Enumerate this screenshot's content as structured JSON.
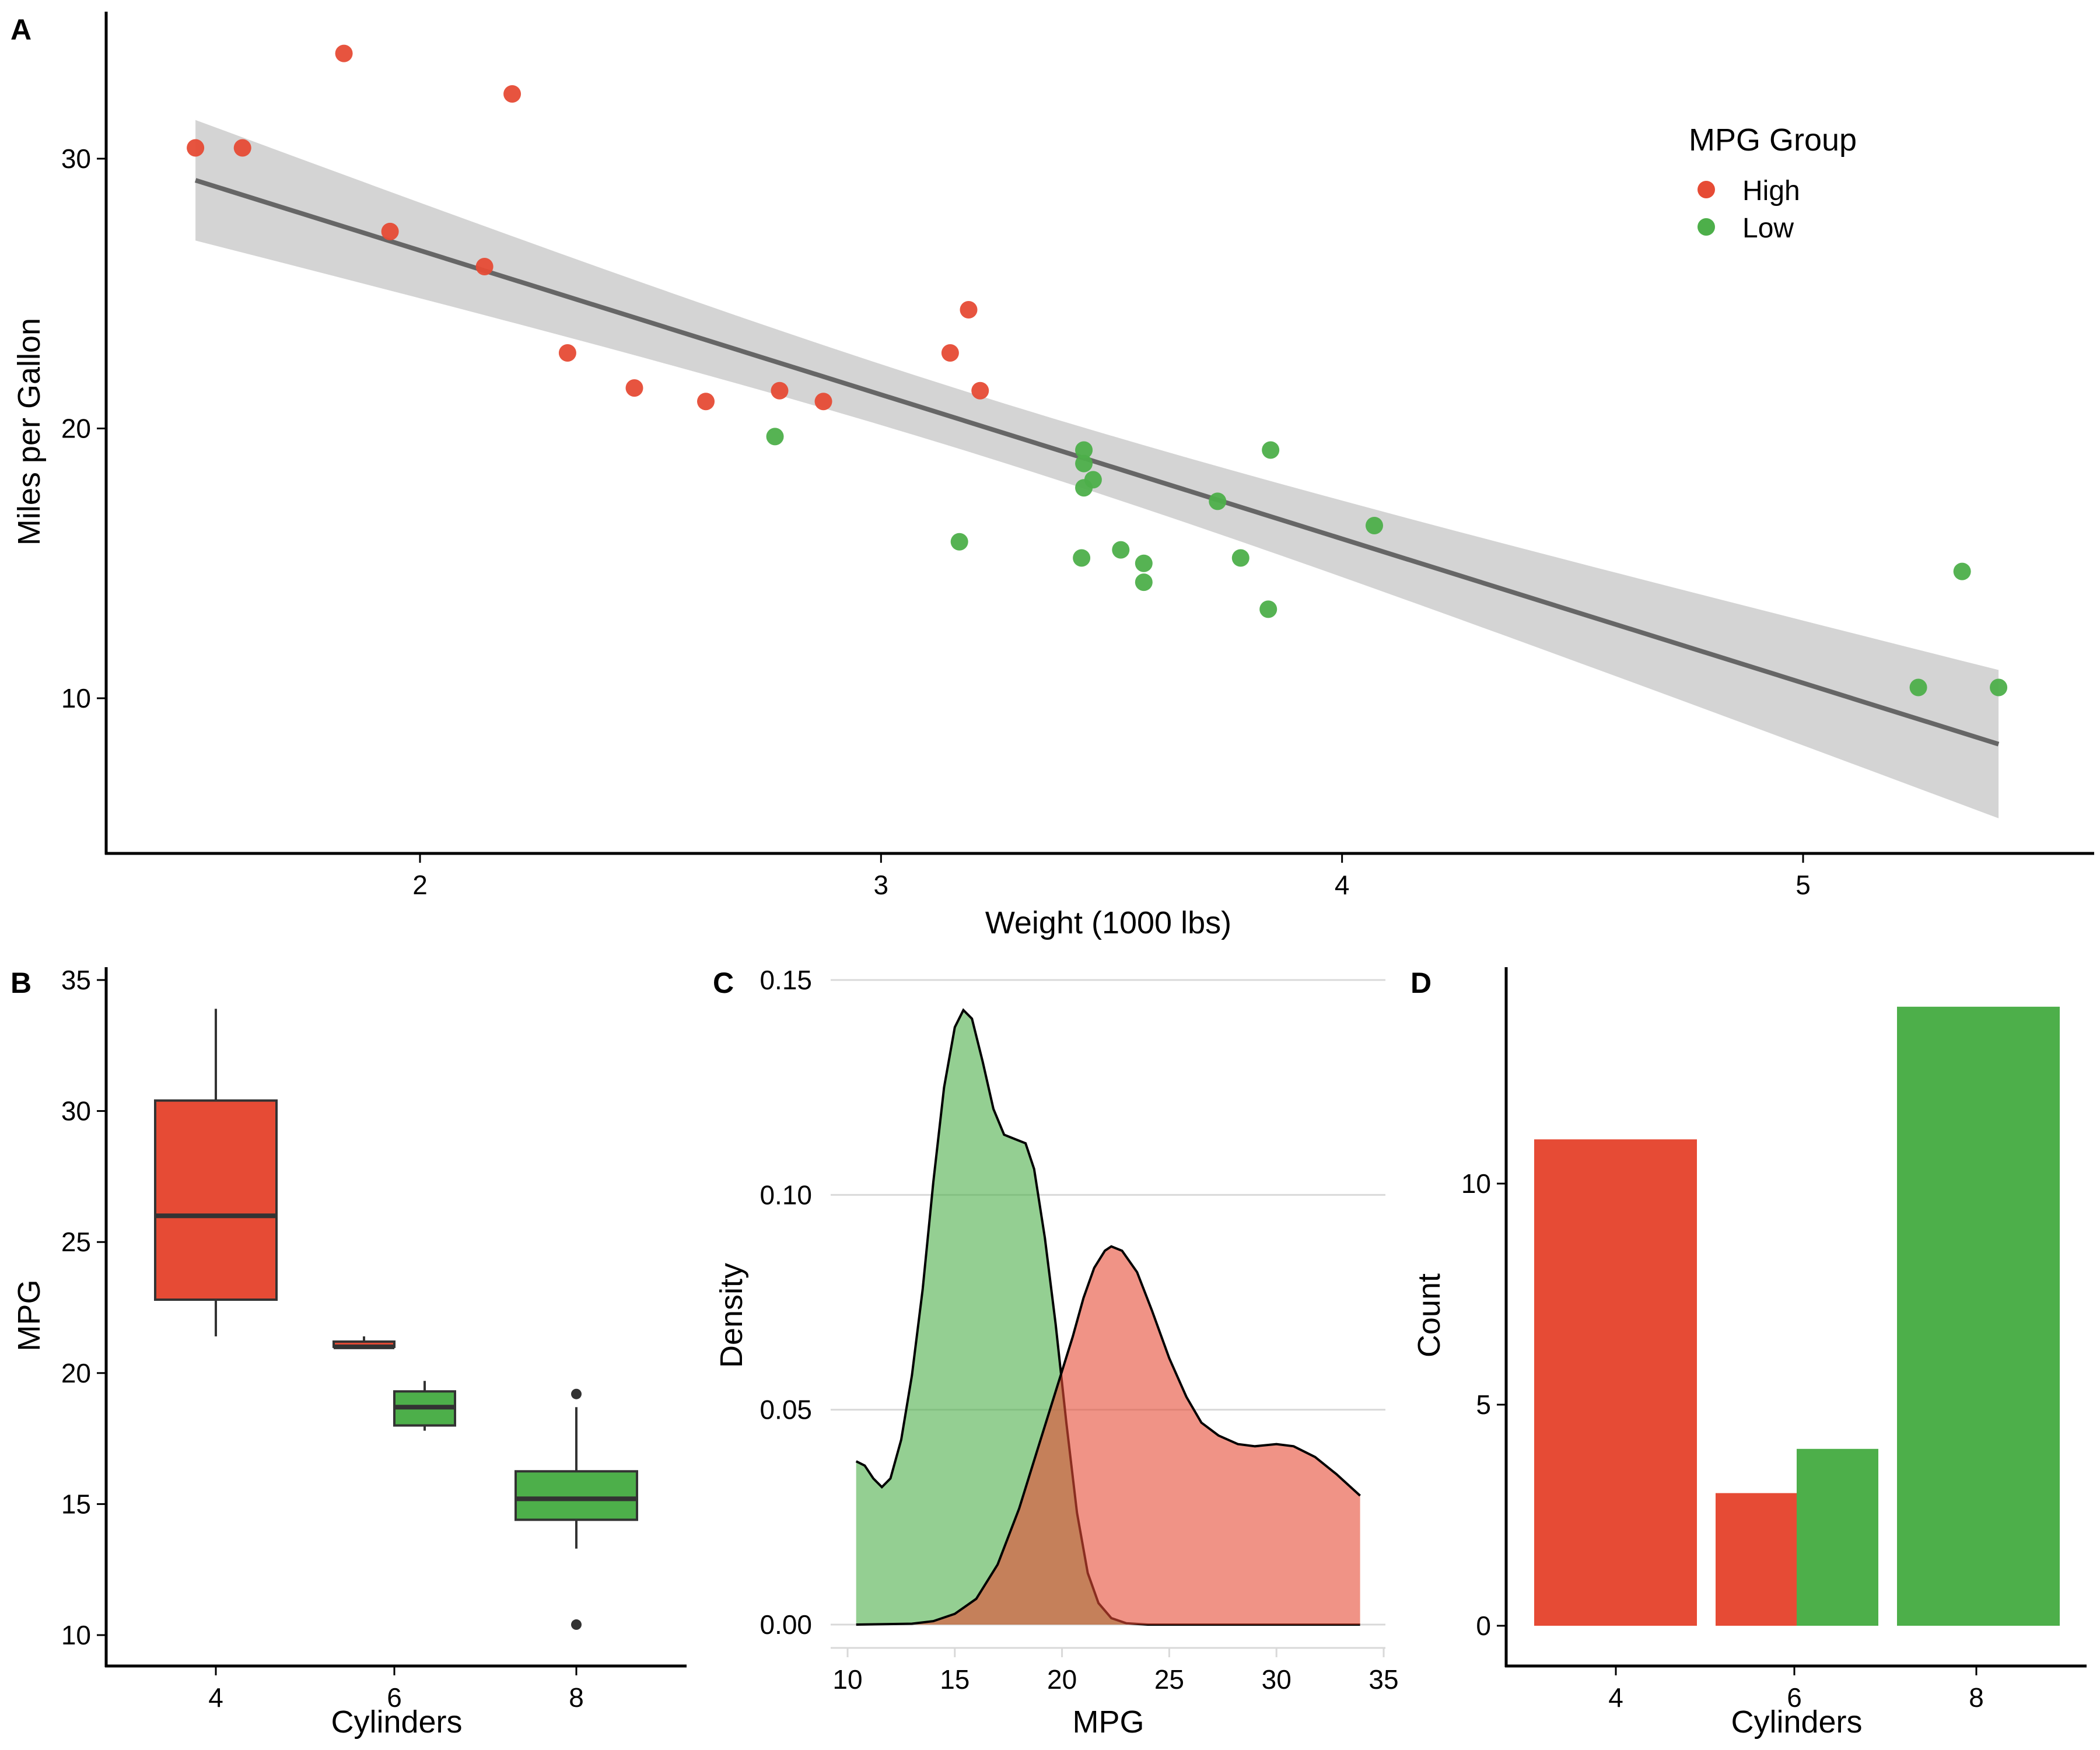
{
  "colors": {
    "high": "#E64B35",
    "low": "#4DAF4A",
    "ribbon": "#D4D4D4",
    "fit_line": "#666666",
    "box_line": "#333333",
    "high_density": "#EF9183",
    "low_density": "#93CF8E"
  },
  "chart_data": [
    {
      "panel": "A",
      "type": "scatter",
      "title": "",
      "xlabel": "Weight (1000 lbs)",
      "ylabel": "Miles per Gallon",
      "xlim": [
        1.35,
        5.63
      ],
      "ylim": [
        5.0,
        35.0
      ],
      "xticks": [
        2,
        3,
        4,
        5
      ],
      "yticks": [
        10,
        20,
        30
      ],
      "grid": false,
      "legend": {
        "title": "MPG Group",
        "position": "top-right",
        "entries": [
          "High",
          "Low"
        ]
      },
      "fit": {
        "method": "lm",
        "x_range": [
          1.513,
          5.424
        ],
        "intercept": 37.285,
        "slope": -5.344,
        "se_band": [
          [
            1.513,
            27.0,
            31.5
          ],
          [
            5.424,
            5.7,
            11.1
          ]
        ]
      },
      "series": [
        {
          "name": "High",
          "points": [
            [
              2.62,
              21.0
            ],
            [
              2.875,
              21.0
            ],
            [
              2.32,
              22.8
            ],
            [
              3.215,
              21.4
            ],
            [
              3.19,
              24.4
            ],
            [
              3.15,
              22.8
            ],
            [
              2.2,
              32.4
            ],
            [
              1.615,
              30.4
            ],
            [
              1.835,
              33.9
            ],
            [
              2.465,
              21.5
            ],
            [
              1.935,
              27.3
            ],
            [
              2.14,
              26.0
            ],
            [
              1.513,
              30.4
            ],
            [
              2.78,
              21.4
            ]
          ]
        },
        {
          "name": "Low",
          "points": [
            [
              3.44,
              18.7
            ],
            [
              3.46,
              18.1
            ],
            [
              3.57,
              14.3
            ],
            [
              3.44,
              19.2
            ],
            [
              3.44,
              17.8
            ],
            [
              4.07,
              16.4
            ],
            [
              3.73,
              17.3
            ],
            [
              3.78,
              15.2
            ],
            [
              5.25,
              10.4
            ],
            [
              5.424,
              10.4
            ],
            [
              5.345,
              14.7
            ],
            [
              3.52,
              15.5
            ],
            [
              3.435,
              15.2
            ],
            [
              3.84,
              13.3
            ],
            [
              3.845,
              19.2
            ],
            [
              3.17,
              15.8
            ],
            [
              2.77,
              19.7
            ],
            [
              3.57,
              15.0
            ]
          ]
        }
      ]
    },
    {
      "panel": "B",
      "type": "box",
      "xlabel": "Cylinders",
      "ylabel": "MPG",
      "ylim": [
        8.0,
        35.0
      ],
      "yticks": [
        10,
        15,
        20,
        25,
        30,
        35
      ],
      "categories": [
        "4",
        "6",
        "8"
      ],
      "boxes": [
        {
          "cyl": "4",
          "group": "High",
          "min": 21.4,
          "q1": 22.8,
          "median": 26.0,
          "q3": 30.4,
          "max": 33.9,
          "outliers": []
        },
        {
          "cyl": "6",
          "group": "High",
          "min": 21.0,
          "q1": 21.0,
          "median": 21.0,
          "q3": 21.2,
          "max": 21.4,
          "outliers": []
        },
        {
          "cyl": "6",
          "group": "Low",
          "min": 17.8,
          "q1": 18.0,
          "median": 18.7,
          "q3": 19.3,
          "max": 19.7,
          "outliers": []
        },
        {
          "cyl": "8",
          "group": "Low",
          "min": 13.3,
          "q1": 14.4,
          "median": 15.2,
          "q3": 16.25,
          "max": 18.7,
          "outliers": [
            19.2,
            10.4
          ]
        }
      ]
    },
    {
      "panel": "C",
      "type": "area",
      "xlabel": "MPG",
      "ylabel": "Density",
      "xlim": [
        9.0,
        35.0
      ],
      "ylim": [
        -0.005,
        0.15
      ],
      "xticks": [
        10,
        15,
        20,
        25,
        30,
        35
      ],
      "yticks": [
        "0.00",
        "0.05",
        "0.10",
        "0.15"
      ],
      "grid": true,
      "series": [
        {
          "name": "Low",
          "points": [
            [
              10.4,
              0.038
            ],
            [
              10.8,
              0.037
            ],
            [
              11.2,
              0.034
            ],
            [
              11.6,
              0.032
            ],
            [
              12.0,
              0.034
            ],
            [
              12.5,
              0.043
            ],
            [
              13.0,
              0.058
            ],
            [
              13.5,
              0.078
            ],
            [
              14.0,
              0.103
            ],
            [
              14.5,
              0.125
            ],
            [
              15.0,
              0.139
            ],
            [
              15.4,
              0.143
            ],
            [
              15.8,
              0.141
            ],
            [
              16.3,
              0.131
            ],
            [
              16.8,
              0.12
            ],
            [
              17.3,
              0.114
            ],
            [
              17.8,
              0.113
            ],
            [
              18.3,
              0.112
            ],
            [
              18.7,
              0.106
            ],
            [
              19.2,
              0.09
            ],
            [
              19.7,
              0.07
            ],
            [
              20.2,
              0.047
            ],
            [
              20.7,
              0.026
            ],
            [
              21.2,
              0.012
            ],
            [
              21.7,
              0.005
            ],
            [
              22.3,
              0.0015
            ],
            [
              23.0,
              0.0003
            ],
            [
              24.0,
              0.0
            ],
            [
              33.9,
              0.0
            ]
          ]
        },
        {
          "name": "High",
          "points": [
            [
              10.4,
              0.0
            ],
            [
              13.0,
              0.0002
            ],
            [
              14.0,
              0.0008
            ],
            [
              15.0,
              0.0025
            ],
            [
              16.0,
              0.006
            ],
            [
              17.0,
              0.014
            ],
            [
              18.0,
              0.027
            ],
            [
              19.0,
              0.043
            ],
            [
              20.0,
              0.059
            ],
            [
              20.5,
              0.067
            ],
            [
              21.0,
              0.076
            ],
            [
              21.5,
              0.083
            ],
            [
              22.0,
              0.087
            ],
            [
              22.3,
              0.088
            ],
            [
              22.8,
              0.087
            ],
            [
              23.5,
              0.082
            ],
            [
              24.2,
              0.073
            ],
            [
              25.0,
              0.062
            ],
            [
              25.8,
              0.053
            ],
            [
              26.5,
              0.047
            ],
            [
              27.3,
              0.044
            ],
            [
              28.2,
              0.042
            ],
            [
              29.0,
              0.0415
            ],
            [
              30.0,
              0.042
            ],
            [
              30.8,
              0.0415
            ],
            [
              31.8,
              0.039
            ],
            [
              32.8,
              0.035
            ],
            [
              33.9,
              0.03
            ]
          ]
        }
      ]
    },
    {
      "panel": "D",
      "type": "bar",
      "xlabel": "Cylinders",
      "ylabel": "Count",
      "ylim": [
        -0.5,
        14.5
      ],
      "yticks": [
        0,
        5,
        10
      ],
      "categories": [
        "4",
        "6",
        "8"
      ],
      "bars": [
        {
          "cyl": "4",
          "group": "High",
          "value": 11
        },
        {
          "cyl": "6",
          "group": "High",
          "value": 3
        },
        {
          "cyl": "6",
          "group": "Low",
          "value": 4
        },
        {
          "cyl": "8",
          "group": "Low",
          "value": 14
        }
      ]
    }
  ],
  "panels": {
    "a": {
      "tag": "A",
      "xlabel": "Weight (1000 lbs)",
      "ylabel": "Miles per Gallon",
      "xticks": [
        "2",
        "3",
        "4",
        "5"
      ],
      "yticks": [
        "10",
        "20",
        "30"
      ]
    },
    "b": {
      "tag": "B",
      "xlabel": "Cylinders",
      "ylabel": "MPG",
      "xticks": [
        "4",
        "6",
        "8"
      ],
      "yticks": [
        "10",
        "15",
        "20",
        "25",
        "30",
        "35"
      ]
    },
    "c": {
      "tag": "C",
      "xlabel": "MPG",
      "ylabel": "Density",
      "xticks": [
        "10",
        "15",
        "20",
        "25",
        "30",
        "35"
      ],
      "yticks": [
        "0.00",
        "0.05",
        "0.10",
        "0.15"
      ]
    },
    "d": {
      "tag": "D",
      "xlabel": "Cylinders",
      "ylabel": "Count",
      "xticks": [
        "4",
        "6",
        "8"
      ],
      "yticks": [
        "0",
        "5",
        "10"
      ]
    }
  },
  "legend": {
    "title": "MPG Group",
    "items": [
      "High",
      "Low"
    ]
  }
}
